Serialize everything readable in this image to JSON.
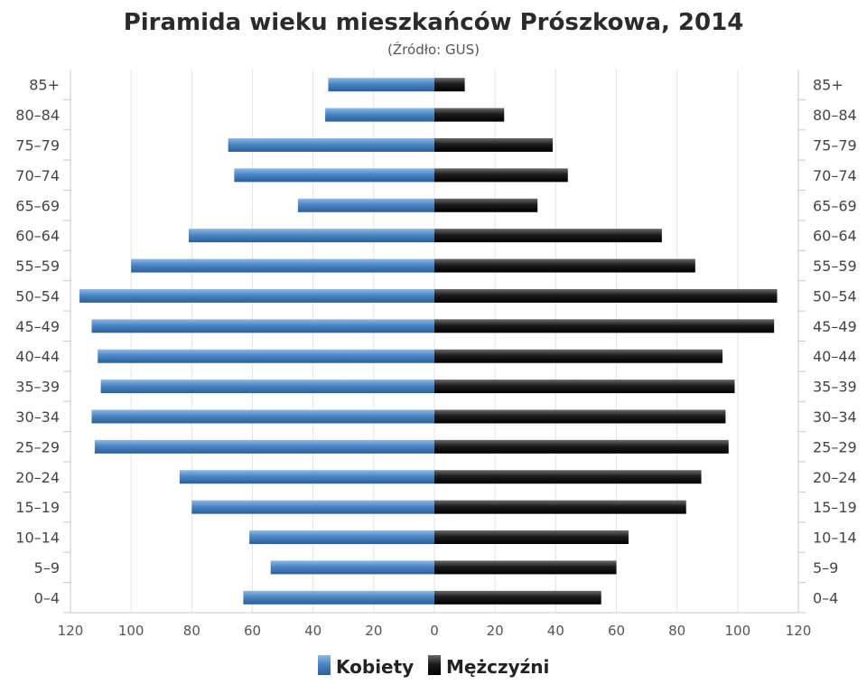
{
  "chart_data": {
    "type": "bar",
    "orientation": "horizontal",
    "layout": "population-pyramid",
    "title": "Piramida wieku mieszkańców Prószkowa, 2014",
    "subtitle": "(Źródło: GUS)",
    "categories": [
      "0–4",
      "5–9",
      "10–14",
      "15–19",
      "20–24",
      "25–29",
      "30–34",
      "35–39",
      "40–44",
      "45–49",
      "50–54",
      "55–59",
      "60–64",
      "65–69",
      "70–74",
      "75–79",
      "80–84",
      "85+"
    ],
    "series": [
      {
        "name": "Kobiety",
        "side": "left",
        "color": "#4a87c6",
        "values": [
          63,
          54,
          61,
          80,
          84,
          112,
          113,
          110,
          111,
          113,
          117,
          100,
          81,
          45,
          66,
          68,
          36,
          35
        ]
      },
      {
        "name": "Mężczyźni",
        "side": "right",
        "color": "#1a1a1a",
        "values": [
          55,
          60,
          64,
          83,
          88,
          97,
          96,
          99,
          95,
          112,
          113,
          86,
          75,
          34,
          44,
          39,
          23,
          10
        ]
      }
    ],
    "xlim": [
      -120,
      120
    ],
    "x_ticks": [
      -120,
      -100,
      -80,
      -60,
      -40,
      -20,
      0,
      20,
      40,
      60,
      80,
      100,
      120
    ],
    "x_tick_labels": [
      "120",
      "100",
      "80",
      "60",
      "40",
      "20",
      "0",
      "20",
      "40",
      "60",
      "80",
      "100",
      "120"
    ],
    "grid": true,
    "legend_position": "bottom-center"
  }
}
